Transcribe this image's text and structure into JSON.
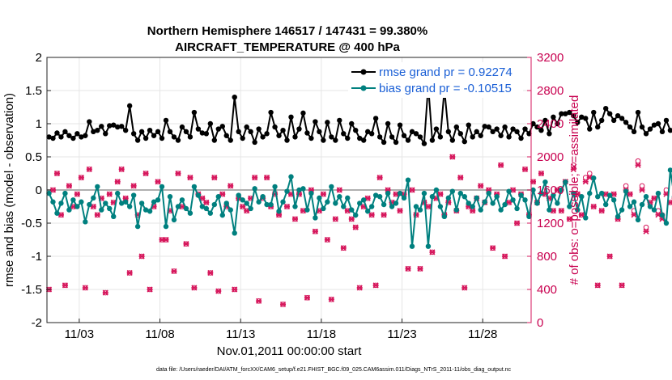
{
  "chart_data": {
    "type": "line",
    "title": "Northern Hemisphere 146517 / 147431 = 99.380%",
    "subtitle": "AIRCRAFT_TEMPERATURE @ 400 hPa",
    "xlabel": "Nov.01,2011 00:00:00 start",
    "ylabel": "rmse and bias (model - observation)",
    "ylabel_right": "# of obs: o=possible; ×=assimilated",
    "footnote": "data file: /Users/raeder/DAI/ATM_forcXX/CAM6_setup/f.e21.FHIST_BGC.f09_025.CAM6assim.011/Diags_NTrS_2011-11/obs_diag_output.nc",
    "x_ticks": [
      "11/03",
      "11/08",
      "11/13",
      "11/18",
      "11/23",
      "11/28"
    ],
    "x_tick_days": [
      3,
      8,
      13,
      18,
      23,
      28
    ],
    "xlim_days": [
      1,
      31
    ],
    "ylim": [
      -2,
      2
    ],
    "y_ticks": [
      "-2",
      "-1.5",
      "-1",
      "-0.5",
      "0",
      "0.5",
      "1",
      "1.5",
      "2"
    ],
    "y_tick_values": [
      -2,
      -1.5,
      -1,
      -0.5,
      0,
      0.5,
      1,
      1.5,
      2
    ],
    "ylim_right": [
      0,
      3200
    ],
    "y_ticks_right": [
      "0",
      "400",
      "800",
      "1200",
      "1600",
      "2000",
      "2400",
      "2800",
      "3200"
    ],
    "y_tick_values_right": [
      0,
      400,
      800,
      1200,
      1600,
      2000,
      2400,
      2800,
      3200
    ],
    "grid": true,
    "legend_position": "top-right",
    "colors": {
      "rmse": "#000000",
      "bias": "#00807f",
      "obs": "#d6175c",
      "zero": "#b0b0b0",
      "legend_text": "#1a5fd6"
    },
    "series": [
      {
        "name": "rmse grand pr = 0.92274",
        "x_start_day": 1.125,
        "x_step_day": 0.25,
        "values": [
          0.8,
          0.78,
          0.86,
          0.8,
          0.88,
          0.82,
          0.78,
          0.85,
          0.8,
          0.82,
          1.03,
          0.88,
          0.9,
          0.96,
          0.85,
          0.97,
          0.98,
          0.95,
          0.96,
          0.9,
          1.27,
          0.85,
          0.75,
          0.88,
          0.78,
          0.9,
          0.82,
          0.88,
          0.78,
          1.05,
          0.88,
          0.8,
          0.75,
          0.95,
          0.88,
          0.8,
          1.17,
          0.92,
          0.86,
          0.85,
          1.0,
          0.75,
          0.92,
          0.96,
          0.82,
          0.75,
          1.4,
          0.88,
          0.78,
          0.95,
          0.88,
          0.72,
          0.92,
          0.8,
          0.85,
          1.17,
          0.95,
          0.82,
          0.9,
          0.75,
          1.1,
          0.8,
          0.92,
          1.16,
          0.86,
          0.78,
          1.03,
          0.88,
          0.75,
          1.02,
          0.8,
          0.75,
          1.05,
          0.85,
          0.78,
          1.0,
          0.9,
          0.78,
          0.75,
          0.88,
          0.85,
          1.08,
          0.8,
          0.72,
          1.0,
          0.8,
          0.72,
          0.98,
          0.82,
          0.75,
          0.88,
          0.85,
          0.8,
          0.7,
          1.58,
          0.75,
          0.92,
          0.8,
          1.52,
          0.88,
          0.75,
          0.95,
          0.85,
          0.73,
          0.98,
          0.8,
          0.88,
          0.82,
          0.96,
          0.95,
          0.88,
          0.92,
          0.82,
          0.95,
          0.8,
          0.92,
          0.88,
          0.78,
          0.92,
          0.85,
          1.0,
          0.95,
          0.9,
          1.05,
          0.85,
          1.1,
          1.0,
          1.15,
          1.15,
          1.17,
          1.12,
          1.02,
          1.1,
          1.08,
          0.92,
          1.17,
          0.95,
          1.05,
          1.23,
          1.15,
          1.05,
          1.12,
          1.08,
          1.02,
          0.95,
          0.88,
          1.17,
          0.95,
          0.85,
          0.92,
          0.98,
          1.0,
          0.88,
          1.05,
          0.9,
          0.88,
          1.3,
          1.02,
          1.28
        ]
      },
      {
        "name": "bias grand pr = -0.10515",
        "x_start_day": 1.125,
        "x_step_day": 0.25,
        "values": [
          -0.05,
          -0.18,
          -0.35,
          -0.2,
          -0.05,
          -0.3,
          -0.15,
          -0.25,
          -0.18,
          -0.48,
          -0.22,
          -0.12,
          0.05,
          -0.3,
          -0.2,
          -0.28,
          -0.4,
          -0.05,
          -0.2,
          -0.18,
          -0.25,
          -0.08,
          -0.55,
          -0.2,
          -0.3,
          -0.32,
          -0.18,
          -0.15,
          0.05,
          -0.55,
          -0.1,
          -0.45,
          -0.25,
          -0.15,
          -0.28,
          -0.35,
          0.05,
          -0.08,
          -0.25,
          -0.28,
          -0.35,
          -0.22,
          -0.1,
          -0.38,
          -0.2,
          -0.3,
          -0.65,
          -0.08,
          -0.15,
          -0.2,
          -0.28,
          0.02,
          -0.18,
          -0.1,
          -0.22,
          -0.22,
          0.05,
          -0.32,
          -0.18,
          -0.02,
          0.2,
          -0.25,
          0.0,
          0.02,
          -0.3,
          -0.05,
          -0.42,
          -0.12,
          -0.28,
          -0.18,
          0.05,
          -0.2,
          -0.1,
          -0.25,
          -0.12,
          -0.3,
          -0.38,
          -0.2,
          -0.15,
          -0.32,
          -0.25,
          -0.08,
          -0.1,
          -0.22,
          -0.05,
          -0.25,
          -0.2,
          -0.05,
          -0.12,
          0.15,
          -0.85,
          -0.25,
          -0.3,
          -0.05,
          -0.85,
          -0.1,
          0.0,
          -0.25,
          -0.4,
          -0.12,
          -0.02,
          -0.3,
          -0.05,
          -0.1,
          -0.2,
          -0.25,
          -0.12,
          -0.3,
          -0.18,
          -0.05,
          -0.2,
          -0.1,
          -0.3,
          -0.22,
          -0.02,
          -0.15,
          -0.28,
          -0.08,
          -0.15,
          -0.4,
          0.0,
          -0.2,
          -0.05,
          0.12,
          -0.3,
          -0.08,
          -0.2,
          0.0,
          0.12,
          -0.25,
          -0.05,
          -0.3,
          -0.1,
          -0.42,
          -0.05,
          0.18,
          -0.1,
          -0.05,
          -0.22,
          -0.08,
          -0.15,
          -0.4,
          -0.3,
          -0.02,
          -0.25,
          -0.18,
          -0.45,
          -0.22,
          -0.1,
          -0.25,
          -0.3,
          -0.05,
          -0.38,
          -0.5,
          0.3,
          -0.1,
          -0.45
        ]
      }
    ],
    "obs_possible": {
      "x_start_day": 1.125,
      "x_step_day": 0.25,
      "values": [
        400,
        1600,
        1800,
        1300,
        450,
        1650,
        1400,
        1550,
        1750,
        420,
        1850,
        1400,
        1300,
        1500,
        360,
        1550,
        1450,
        1700,
        1850,
        1500,
        600,
        1650,
        1300,
        800,
        1800,
        400,
        1400,
        1700,
        1000,
        1000,
        1350,
        620,
        1800,
        1400,
        950,
        1750,
        420,
        1550,
        1500,
        1450,
        600,
        1750,
        380,
        1550,
        1400,
        1650,
        400,
        1500,
        1400,
        1350,
        1500,
        1750,
        260,
        1500,
        1750,
        1400,
        1550,
        1300,
        220,
        1400,
        1550,
        1250,
        1550,
        1350,
        300,
        1600,
        1100,
        1350,
        1550,
        1000,
        280,
        1250,
        1600,
        900,
        1350,
        1250,
        1150,
        420,
        1400,
        1500,
        1300,
        450,
        1750,
        1300,
        1600,
        1450,
        1550,
        1350,
        1550,
        650,
        1600,
        1300,
        650,
        1450,
        1400,
        850,
        1500,
        1550,
        1300,
        1450,
        2000,
        1350,
        1750,
        420,
        1400,
        1350,
        1500,
        1650,
        1450,
        1600,
        900,
        1550,
        1900,
        800,
        1450,
        1600,
        1200,
        1550,
        1850,
        1300,
        1700,
        1450,
        1800,
        1550,
        1500,
        1350,
        1600,
        1350,
        1700,
        1250,
        1900,
        1550,
        1300,
        1750,
        1800,
        1400,
        450,
        1350,
        1550,
        800,
        1550,
        1250,
        450,
        1650,
        1550,
        1350,
        1950,
        1650,
        1150,
        1450,
        1500,
        1350,
        1300,
        1600,
        1450,
        1500,
        450,
        1400,
        1550,
        1300
      ]
    },
    "obs_assimilated": {
      "x_start_day": 1.125,
      "x_step_day": 0.25,
      "values": [
        400,
        1600,
        1800,
        1300,
        450,
        1650,
        1400,
        1550,
        1750,
        420,
        1850,
        1400,
        1300,
        1500,
        360,
        1550,
        1450,
        1700,
        1850,
        1500,
        600,
        1650,
        1300,
        800,
        1800,
        400,
        1400,
        1700,
        1000,
        1000,
        1350,
        620,
        1800,
        1400,
        950,
        1750,
        420,
        1550,
        1500,
        1450,
        600,
        1750,
        380,
        1550,
        1400,
        1650,
        400,
        1500,
        1400,
        1350,
        1500,
        1750,
        260,
        1500,
        1750,
        1400,
        1550,
        1300,
        220,
        1400,
        1550,
        1250,
        1550,
        1350,
        300,
        1600,
        1100,
        1350,
        1550,
        1000,
        280,
        1250,
        1600,
        900,
        1350,
        1250,
        1150,
        420,
        1400,
        1500,
        1300,
        450,
        1750,
        1300,
        1600,
        1450,
        1550,
        1350,
        1550,
        650,
        1600,
        1300,
        650,
        1450,
        1400,
        850,
        1500,
        1550,
        1300,
        1450,
        2000,
        1350,
        1750,
        420,
        1400,
        1350,
        1500,
        1650,
        1450,
        1600,
        900,
        1550,
        1900,
        800,
        1450,
        1600,
        1200,
        1550,
        1850,
        1300,
        1700,
        1450,
        1800,
        1550,
        1500,
        1350,
        1600,
        1350,
        1700,
        1250,
        1850,
        1550,
        1300,
        1700,
        1750,
        1400,
        450,
        1350,
        1550,
        800,
        1550,
        1250,
        450,
        1600,
        1550,
        1300,
        1900,
        1600,
        1100,
        1450,
        1500,
        1300,
        1250,
        1550,
        1450,
        1450,
        450,
        1400,
        1550,
        1300
      ]
    }
  }
}
